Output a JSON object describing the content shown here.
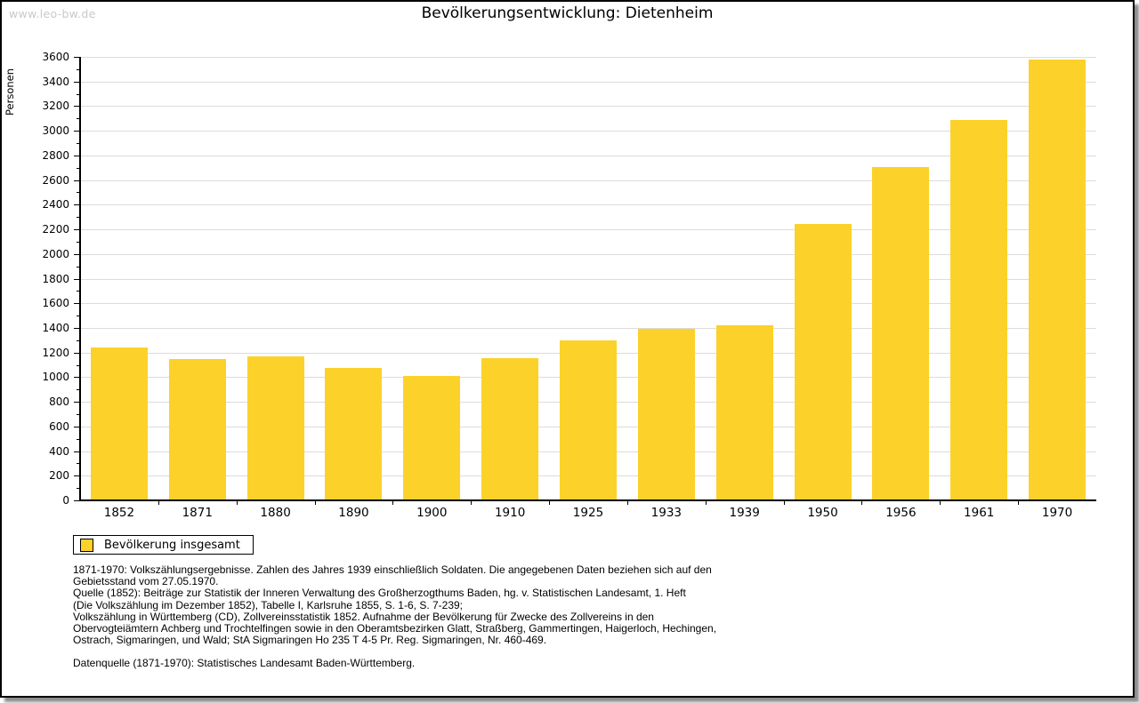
{
  "watermark": "www.leo-bw.de",
  "title": "Bevölkerungsentwicklung: Dietenheim",
  "legend": {
    "label": "Bevölkerung insgesamt"
  },
  "chart_data": {
    "type": "bar",
    "title": "Bevölkerungsentwicklung: Dietenheim",
    "xlabel": "",
    "ylabel": "Personen",
    "categories": [
      "1852",
      "1871",
      "1880",
      "1890",
      "1900",
      "1910",
      "1925",
      "1933",
      "1939",
      "1950",
      "1956",
      "1961",
      "1970"
    ],
    "values": [
      1242,
      1148,
      1170,
      1076,
      1011,
      1155,
      1300,
      1394,
      1424,
      2246,
      2702,
      3090,
      3580
    ],
    "series_name": "Bevölkerung insgesamt",
    "ylim": [
      0,
      3600
    ],
    "ytick_step": 200,
    "ytick_minor_step": 100,
    "grid": true,
    "legend_position": "bottom-left",
    "bar_color": "#FCD12A",
    "grid_color": "#dcdcdc"
  },
  "footnotes": {
    "lines": [
      "1871-1970: Volkszählungsergebnisse. Zahlen des Jahres 1939 einschließlich Soldaten. Die angegebenen Daten beziehen sich auf den",
      "Gebietsstand vom 27.05.1970.",
      "Quelle (1852): Beiträge zur Statistik der Inneren Verwaltung des Großherzogthums Baden, hg. v. Statistischen Landesamt, 1. Heft",
      "(Die Volkszählung im Dezember 1852), Tabelle I, Karlsruhe 1855, S. 1-6, S. 7-239;",
      "Volkszählung in Württemberg (CD), Zollvereinsstatistik 1852. Aufnahme der Bevölkerung für Zwecke des Zollvereins in den",
      "Obervogteiämtern Achberg und Trochtelfingen sowie in den Oberamtsbezirken Glatt, Straßberg, Gammertingen, Haigerloch, Hechingen,",
      "Ostrach, Sigmaringen, und Wald; StA Sigmaringen Ho 235 T 4-5 Pr. Reg. Sigmaringen, Nr. 460-469."
    ],
    "datasource": "Datenquelle (1871-1970): Statistisches Landesamt Baden-Württemberg."
  }
}
